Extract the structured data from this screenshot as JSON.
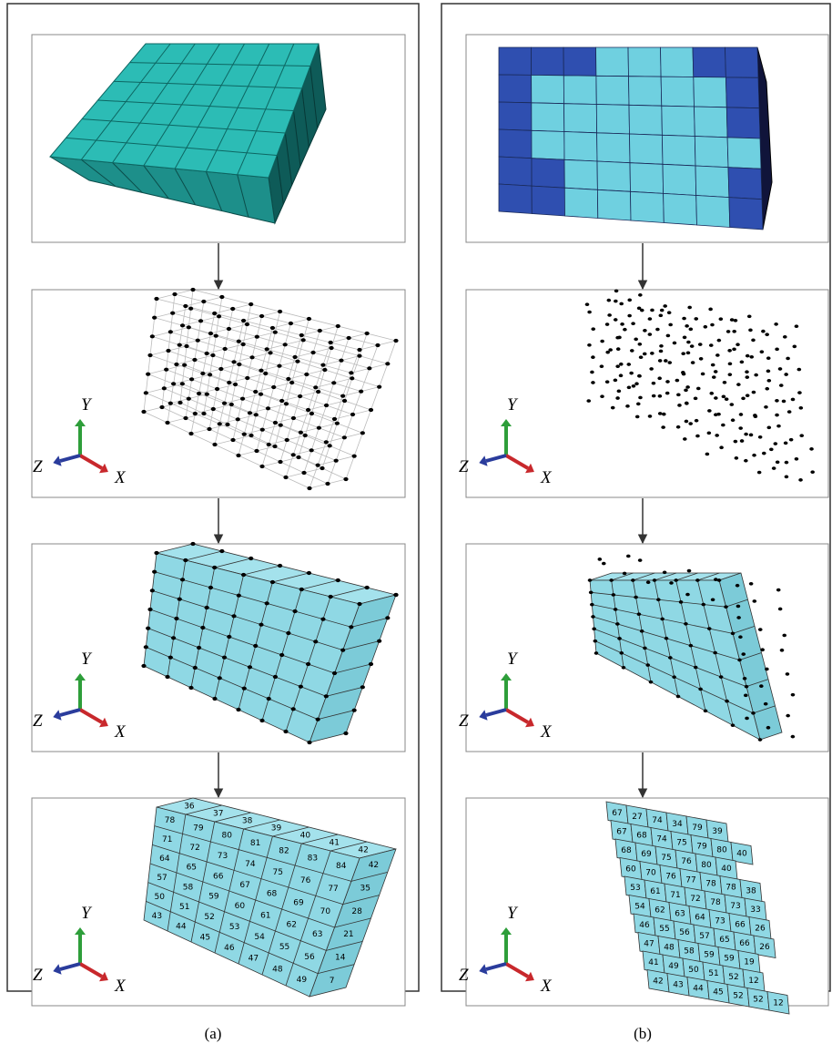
{
  "figure": {
    "captions": [
      "(a)",
      "(b)"
    ],
    "axes": {
      "x": "X",
      "y": "Y",
      "z": "Z"
    },
    "panel_a_labels": {
      "top": [
        36,
        37,
        38,
        39,
        40,
        41,
        42
      ],
      "front": [
        78,
        79,
        80,
        81,
        82,
        83,
        84,
        71,
        72,
        73,
        74,
        75,
        76,
        77,
        64,
        65,
        66,
        67,
        68,
        69,
        70,
        57,
        58,
        59,
        60,
        61,
        62,
        63,
        50,
        51,
        52,
        53,
        54,
        55,
        56,
        43,
        44,
        45,
        46,
        47,
        48,
        49
      ],
      "side": [
        42,
        35,
        28,
        21,
        14,
        7
      ]
    },
    "panel_b_labels": {
      "rows": [
        [
          67,
          27,
          74,
          34,
          79,
          39
        ],
        [
          67,
          68,
          74,
          75,
          79,
          80,
          40
        ],
        [
          68,
          69,
          75,
          76,
          80,
          40
        ],
        [
          60,
          70,
          76,
          77,
          78,
          78,
          38
        ],
        [
          53,
          61,
          71,
          72,
          78,
          73,
          33
        ],
        [
          54,
          62,
          63,
          64,
          73,
          66,
          26
        ],
        [
          46,
          55,
          56,
          57,
          65,
          66,
          26
        ],
        [
          47,
          48,
          58,
          59,
          59,
          19
        ],
        [
          41,
          49,
          50,
          51,
          52,
          12
        ],
        [
          42,
          43,
          44,
          45,
          52,
          52,
          12
        ]
      ]
    }
  }
}
